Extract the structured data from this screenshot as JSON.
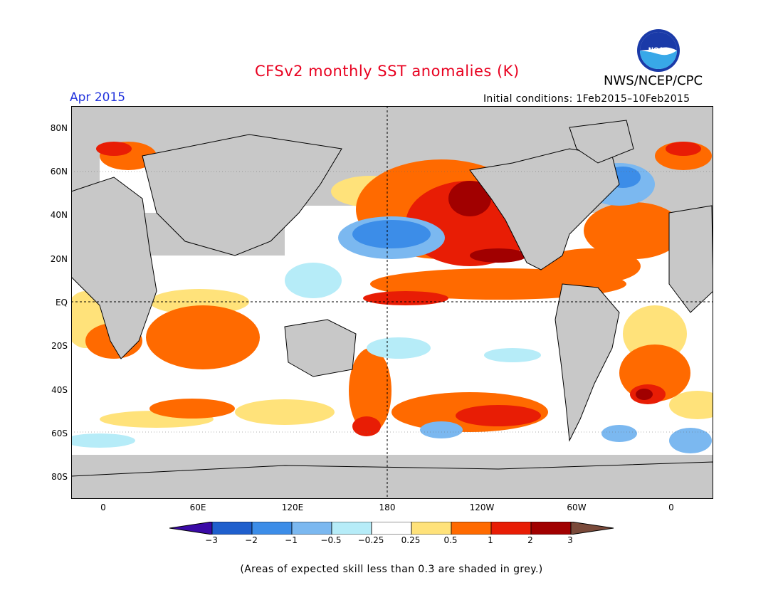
{
  "title": "CFSv2 monthly SST anomalies (K)",
  "agency": "NWS/NCEP/CPC",
  "logo_text": "NOAA",
  "forecast_month": "Apr 2015",
  "initial_conditions": "Initial conditions: 1Feb2015–10Feb2015",
  "lat_labels": [
    "80N",
    "60N",
    "40N",
    "20N",
    "EQ",
    "20S",
    "40S",
    "60S",
    "80S"
  ],
  "lon_labels": [
    "0",
    "60E",
    "120E",
    "180",
    "120W",
    "60W",
    "0"
  ],
  "colorbar": {
    "tick_labels": [
      "−3",
      "−2",
      "−1",
      "−0.5",
      "−0.25",
      "0.25",
      "0.5",
      "1",
      "2",
      "3"
    ],
    "colors": [
      "#3a0aa6",
      "#1f5fcd",
      "#3c8de8",
      "#7bb8f0",
      "#b6ecf8",
      "#ffffff",
      "#ffe27a",
      "#ff6a00",
      "#e81d05",
      "#a10000",
      "#7a4a3a"
    ]
  },
  "skill_mask_color": "#c8c8c8",
  "footnote": "(Areas of expected skill less than 0.3 are shaded in grey.)"
}
